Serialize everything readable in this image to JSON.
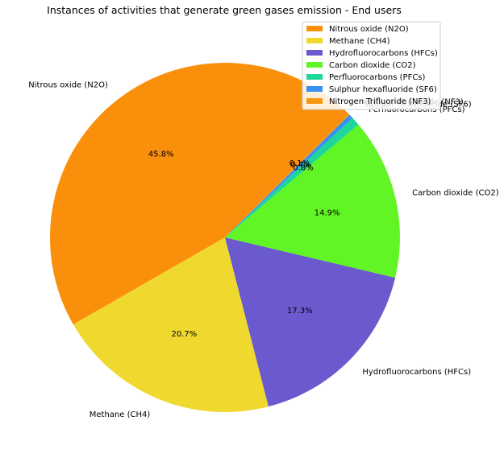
{
  "chart_data": {
    "type": "pie",
    "title": "Instances of activities that generate green gases emission - End users",
    "categories": [
      "Nitrous oxide (N2O)",
      "Methane (CH4)",
      "Hydrofluorocarbons (HFCs)",
      "Carbon dioxide (CO2)",
      "Perfluorocarbons (PFCs)",
      "Sulphur hexafluoride (SF6)",
      "Nitrogen Trifluoride (NF3)"
    ],
    "values": [
      45.8,
      20.7,
      17.3,
      14.9,
      0.8,
      0.4,
      0.1
    ],
    "percent_labels": [
      "45.8%",
      "20.7%",
      "17.3%",
      "14.9%",
      "0.8%",
      "0.4%",
      "0.1%"
    ],
    "colors": [
      "#fa8f0b",
      "#f0d92f",
      "#6a5acd",
      "#62f525",
      "#1ed69a",
      "#3890f2",
      "#f7960f"
    ],
    "start_angle_deg": 45,
    "direction": "counterclockwise",
    "legend_position": "top-right"
  }
}
